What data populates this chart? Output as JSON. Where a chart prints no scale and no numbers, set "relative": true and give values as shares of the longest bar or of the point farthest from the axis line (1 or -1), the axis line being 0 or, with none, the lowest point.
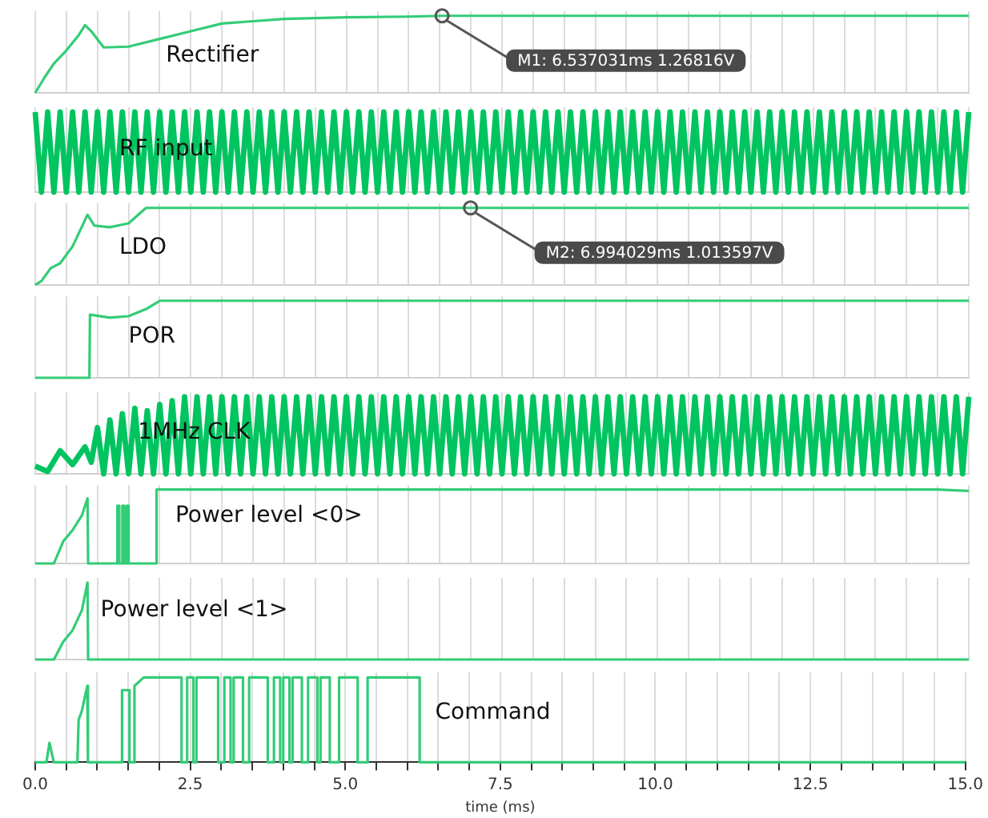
{
  "chart_data": [
    {
      "type": "line",
      "color": "#33cc77",
      "relative": true,
      "grid": "x",
      "tick_labels": false,
      "xlim": [
        0,
        15
      ],
      "xticks": [
        0,
        0.5,
        1,
        1.5,
        2,
        2.5,
        3,
        3.5,
        4,
        4.5,
        5,
        5.5,
        6,
        6.5,
        7,
        7.5,
        8,
        8.5,
        9,
        9.5,
        10,
        10.5,
        11,
        11.5,
        12,
        12.5,
        13,
        13.5,
        14,
        14.5,
        15
      ],
      "x": [
        0,
        0.15,
        0.3,
        0.5,
        0.7,
        0.8,
        0.9,
        1.1,
        1.5,
        2,
        2.5,
        3,
        3.5,
        4,
        5,
        6,
        6.537031,
        8,
        10,
        12,
        15
      ],
      "values": [
        0,
        0.2,
        0.38,
        0.55,
        0.75,
        0.88,
        0.8,
        0.59,
        0.6,
        0.7,
        0.8,
        0.9,
        0.93,
        0.96,
        0.98,
        0.99,
        1,
        1,
        1,
        1,
        1
      ],
      "annotations": [
        "Rectifier",
        {
          "text": "M1: 6.537031ms 1.26816V",
          "x": 6.537031,
          "y": 1
        }
      ]
    },
    {
      "type": "line",
      "color": "#00c45f",
      "relative": true,
      "grid": "x",
      "tick_labels": false,
      "xlim": [
        0,
        15
      ],
      "xticks": [
        0,
        0.5,
        1,
        1.5,
        2,
        2.5,
        3,
        3.5,
        4,
        4.5,
        5,
        5.5,
        6,
        6.5,
        7,
        7.5,
        8,
        8.5,
        9,
        9.5,
        10,
        10.5,
        11,
        11.5,
        12,
        12.5,
        13,
        13.5,
        14,
        14.5,
        15
      ],
      "x": [
        0,
        0.1,
        0.2,
        0.3,
        0.4,
        0.5,
        0.6,
        0.7,
        0.8,
        0.9,
        1,
        1.1,
        1.2,
        1.3,
        1.4,
        1.5,
        1.6,
        1.7,
        1.8,
        1.9,
        2,
        2.1,
        2.2,
        2.3,
        2.4,
        2.5,
        2.6,
        2.7,
        2.8,
        2.9,
        3,
        3.1,
        3.2,
        3.3,
        3.4,
        3.5,
        3.6,
        3.7,
        3.8,
        3.9,
        4,
        4.1,
        4.2,
        4.3,
        4.4,
        4.5,
        4.6,
        4.7,
        4.8,
        4.9,
        5,
        5.1,
        5.2,
        5.3,
        5.4,
        5.5,
        5.6,
        5.7,
        5.8,
        5.9,
        6,
        6.1,
        6.2,
        6.3,
        6.4,
        6.5,
        6.6,
        6.7,
        6.8,
        6.9,
        7,
        7.1,
        7.2,
        7.3,
        7.4,
        7.5,
        7.6,
        7.7,
        7.8,
        7.9,
        8,
        8.1,
        8.2,
        8.3,
        8.4,
        8.5,
        8.6,
        8.7,
        8.8,
        8.9,
        9,
        9.1,
        9.2,
        9.3,
        9.4,
        9.5,
        9.6,
        9.7,
        9.8,
        9.9,
        10,
        10.1,
        10.2,
        10.3,
        10.4,
        10.5,
        10.6,
        10.7,
        10.8,
        10.9,
        11,
        11.1,
        11.2,
        11.3,
        11.4,
        11.5,
        11.6,
        11.7,
        11.8,
        11.9,
        12,
        12.1,
        12.2,
        12.3,
        12.4,
        12.5,
        12.6,
        12.7,
        12.8,
        12.9,
        13,
        13.1,
        13.2,
        13.3,
        13.4,
        13.5,
        13.6,
        13.7,
        13.8,
        13.9,
        14,
        14.1,
        14.2,
        14.3,
        14.4,
        14.5,
        14.6,
        14.7,
        14.8,
        14.9,
        15
      ],
      "values": [
        1,
        0,
        1,
        0,
        1,
        0,
        1,
        0,
        1,
        0,
        1,
        0,
        1,
        0,
        1,
        0,
        1,
        0,
        1,
        0,
        1,
        0,
        1,
        0,
        1,
        0,
        1,
        0,
        1,
        0,
        1,
        0,
        1,
        0,
        1,
        0,
        1,
        0,
        1,
        0,
        1,
        0,
        1,
        0,
        1,
        0,
        1,
        0,
        1,
        0,
        1,
        0,
        1,
        0,
        1,
        0,
        1,
        0,
        1,
        0,
        1,
        0,
        1,
        0,
        1,
        0,
        1,
        0,
        1,
        0,
        1,
        0,
        1,
        0,
        1,
        0,
        1,
        0,
        1,
        0,
        1,
        0,
        1,
        0,
        1,
        0,
        1,
        0,
        1,
        0,
        1,
        0,
        1,
        0,
        1,
        0,
        1,
        0,
        1,
        0,
        1,
        0,
        1,
        0,
        1,
        0,
        1,
        0,
        1,
        0,
        1,
        0,
        1,
        0,
        1,
        0,
        1,
        0,
        1,
        0,
        1,
        0,
        1,
        0,
        1,
        0,
        1,
        0,
        1,
        0,
        1,
        0,
        1,
        0,
        1,
        0,
        1,
        0,
        1,
        0,
        1,
        0,
        1,
        0,
        1,
        0,
        1,
        0,
        1,
        0,
        1
      ],
      "annotations": [
        "RF input"
      ]
    },
    {
      "type": "line",
      "color": "#33cc77",
      "relative": true,
      "grid": "x",
      "tick_labels": false,
      "xlim": [
        0,
        15
      ],
      "xticks": [
        0,
        0.5,
        1,
        1.5,
        2,
        2.5,
        3,
        3.5,
        4,
        4.5,
        5,
        5.5,
        6,
        6.5,
        7,
        7.5,
        8,
        8.5,
        9,
        9.5,
        10,
        10.5,
        11,
        11.5,
        12,
        12.5,
        13,
        13.5,
        14,
        14.5,
        15
      ],
      "x": [
        0,
        0.1,
        0.25,
        0.4,
        0.6,
        0.84,
        0.95,
        1.2,
        1.5,
        1.78,
        6.994029,
        15
      ],
      "values": [
        0,
        0.05,
        0.22,
        0.28,
        0.5,
        0.91,
        0.77,
        0.75,
        0.8,
        1,
        1,
        1
      ],
      "annotations": [
        "LDO",
        {
          "text": "M2: 6.994029ms 1.013597V",
          "x": 6.994029,
          "y": 1
        }
      ]
    },
    {
      "type": "line",
      "color": "#33cc77",
      "relative": true,
      "grid": "x",
      "tick_labels": false,
      "xlim": [
        0,
        15
      ],
      "xticks": [
        0,
        0.5,
        1,
        1.5,
        2,
        2.5,
        3,
        3.5,
        4,
        4.5,
        5,
        5.5,
        6,
        6.5,
        7,
        7.5,
        8,
        8.5,
        9,
        9.5,
        10,
        10.5,
        11,
        11.5,
        12,
        12.5,
        13,
        13.5,
        14,
        14.5,
        15
      ],
      "x": [
        0,
        0.87,
        0.88,
        1.2,
        1.5,
        1.8,
        2,
        15
      ],
      "values": [
        0,
        0,
        0.82,
        0.78,
        0.8,
        0.9,
        1,
        1
      ],
      "annotations": [
        "POR"
      ]
    },
    {
      "type": "line",
      "color": "#00c45f",
      "relative": true,
      "grid": "x",
      "tick_labels": false,
      "xlim": [
        0,
        15
      ],
      "xticks": [
        0,
        0.5,
        1,
        1.5,
        2,
        2.5,
        3,
        3.5,
        4,
        4.5,
        5,
        5.5,
        6,
        6.5,
        7,
        7.5,
        8,
        8.5,
        9,
        9.5,
        10,
        10.5,
        11,
        11.5,
        12,
        12.5,
        13,
        13.5,
        14,
        14.5,
        15
      ],
      "x": [
        0,
        0.2,
        0.4,
        0.6,
        0.8,
        0.9,
        1,
        1.1,
        1.2,
        1.3,
        1.4,
        1.5,
        1.6,
        1.7,
        1.8,
        1.9,
        2,
        2.1,
        2.2,
        2.3,
        2.4,
        2.5,
        2.6,
        2.7,
        2.8,
        2.9,
        3,
        3.1,
        3.2,
        3.3,
        3.4,
        3.5,
        3.6,
        3.7,
        3.8,
        3.9,
        4,
        4.1,
        4.2,
        4.3,
        4.4,
        4.5,
        4.6,
        4.7,
        4.8,
        4.9,
        5,
        5.1,
        5.2,
        5.3,
        5.4,
        5.5,
        5.6,
        5.7,
        5.8,
        5.9,
        6,
        6.1,
        6.2,
        6.3,
        6.4,
        6.5,
        6.6,
        6.7,
        6.8,
        6.9,
        7,
        7.1,
        7.2,
        7.3,
        7.4,
        7.5,
        7.6,
        7.7,
        7.8,
        7.9,
        8,
        8.1,
        8.2,
        8.3,
        8.4,
        8.5,
        8.6,
        8.7,
        8.8,
        8.9,
        9,
        9.1,
        9.2,
        9.3,
        9.4,
        9.5,
        9.6,
        9.7,
        9.8,
        9.9,
        10,
        10.1,
        10.2,
        10.3,
        10.4,
        10.5,
        10.6,
        10.7,
        10.8,
        10.9,
        11,
        11.1,
        11.2,
        11.3,
        11.4,
        11.5,
        11.6,
        11.7,
        11.8,
        11.9,
        12,
        12.1,
        12.2,
        12.3,
        12.4,
        12.5,
        12.6,
        12.7,
        12.8,
        12.9,
        13,
        13.1,
        13.2,
        13.3,
        13.4,
        13.5,
        13.6,
        13.7,
        13.8,
        13.9,
        14,
        14.1,
        14.2,
        14.3,
        14.4,
        14.5,
        14.6,
        14.7,
        14.8,
        14.9,
        15
      ],
      "values": [
        0.1,
        0.03,
        0.3,
        0.12,
        0.35,
        0.15,
        0.6,
        0,
        0.7,
        0,
        0.78,
        0,
        0.85,
        0,
        0.82,
        0,
        0.9,
        0,
        0.95,
        0,
        1,
        0,
        1,
        0,
        1,
        0,
        1,
        0,
        1,
        0,
        1,
        0,
        1,
        0,
        1,
        0,
        1,
        0,
        1,
        0,
        1,
        0,
        1,
        0,
        1,
        0,
        1,
        0,
        1,
        0,
        1,
        0,
        1,
        0,
        1,
        0,
        1,
        0,
        1,
        0,
        1,
        0,
        1,
        0,
        1,
        0,
        1,
        0,
        1,
        0,
        1,
        0,
        1,
        0,
        1,
        0,
        1,
        0,
        1,
        0,
        1,
        0,
        1,
        0,
        1,
        0,
        1,
        0,
        1,
        0,
        1,
        0,
        1,
        0,
        1,
        0,
        1,
        0,
        1,
        0,
        1,
        0,
        1,
        0,
        1,
        0,
        1,
        0,
        1,
        0,
        1,
        0,
        1,
        0,
        1,
        0,
        1,
        0,
        1,
        0,
        1,
        0,
        1,
        0,
        1,
        0,
        1,
        0,
        1,
        0,
        1,
        0,
        1,
        0,
        1,
        0,
        1,
        0,
        1,
        0,
        1,
        0,
        1,
        0,
        1,
        0,
        1
      ],
      "annotations": [
        "1MHz CLK"
      ]
    },
    {
      "type": "line",
      "color": "#33cc77",
      "relative": true,
      "grid": "x",
      "tick_labels": false,
      "xlim": [
        0,
        15
      ],
      "xticks": [
        0,
        0.5,
        1,
        1.5,
        2,
        2.5,
        3,
        3.5,
        4,
        4.5,
        5,
        5.5,
        6,
        6.5,
        7,
        7.5,
        8,
        8.5,
        9,
        9.5,
        10,
        10.5,
        11,
        11.5,
        12,
        12.5,
        13,
        13.5,
        14,
        14.5,
        15
      ],
      "x": [
        0,
        0.3,
        0.45,
        0.6,
        0.75,
        0.84,
        0.85,
        1.32,
        1.32,
        1.35,
        1.35,
        1.4,
        1.4,
        1.43,
        1.43,
        1.47,
        1.47,
        1.5,
        1.5,
        1.94,
        1.95,
        14.5,
        15
      ],
      "values": [
        0,
        0,
        0.3,
        0.45,
        0.65,
        0.88,
        0,
        0,
        0.78,
        0.78,
        0,
        0,
        0.78,
        0.78,
        0,
        0,
        0.78,
        0.78,
        0,
        0,
        1,
        1,
        0.98
      ],
      "annotations": [
        "Power level <0>"
      ]
    },
    {
      "type": "line",
      "color": "#33cc77",
      "relative": true,
      "grid": "x",
      "tick_labels": false,
      "xlim": [
        0,
        15
      ],
      "xticks": [
        0,
        0.5,
        1,
        1.5,
        2,
        2.5,
        3,
        3.5,
        4,
        4.5,
        5,
        5.5,
        6,
        6.5,
        7,
        7.5,
        8,
        8.5,
        9,
        9.5,
        10,
        10.5,
        11,
        11.5,
        12,
        12.5,
        13,
        13.5,
        14,
        14.5,
        15
      ],
      "x": [
        0,
        0.3,
        0.45,
        0.6,
        0.75,
        0.84,
        0.85,
        12,
        15
      ],
      "values": [
        0,
        0,
        0.23,
        0.38,
        0.64,
        1,
        0,
        0,
        0
      ],
      "annotations": [
        "Power level <1>"
      ]
    },
    {
      "type": "line",
      "color": "#33cc77",
      "relative": true,
      "grid": "x",
      "xlabel": "time (ms)",
      "xlim": [
        0,
        15
      ],
      "xticks": [
        {
          "value": 0,
          "label": "0.0"
        },
        {
          "value": 0.5,
          "label": null
        },
        {
          "value": 1,
          "label": null
        },
        {
          "value": 1.5,
          "label": null
        },
        {
          "value": 2,
          "label": null
        },
        2.5,
        {
          "value": 3,
          "label": null
        },
        {
          "value": 3.5,
          "label": null
        },
        {
          "value": 4,
          "label": null
        },
        {
          "value": 4.5,
          "label": null
        },
        {
          "value": 5,
          "label": "5.0"
        },
        {
          "value": 5.5,
          "label": null
        },
        {
          "value": 6,
          "label": null
        },
        {
          "value": 6.5,
          "label": null
        },
        {
          "value": 7,
          "label": null
        },
        7.5,
        {
          "value": 8,
          "label": null
        },
        {
          "value": 8.5,
          "label": null
        },
        {
          "value": 9,
          "label": null
        },
        {
          "value": 9.5,
          "label": null
        },
        {
          "value": 10,
          "label": "10.0"
        },
        {
          "value": 10.5,
          "label": null
        },
        {
          "value": 11,
          "label": null
        },
        {
          "value": 11.5,
          "label": null
        },
        {
          "value": 12,
          "label": null
        },
        12.5,
        {
          "value": 13,
          "label": null
        },
        {
          "value": 13.5,
          "label": null
        },
        {
          "value": 14,
          "label": null
        },
        {
          "value": 14.5,
          "label": null
        },
        {
          "value": 15,
          "label": "15.0"
        }
      ],
      "x": [
        0,
        0.18,
        0.23,
        0.3,
        0.68,
        0.7,
        0.75,
        0.84,
        0.85,
        1.4,
        1.4,
        1.52,
        1.52,
        1.6,
        1.6,
        1.75,
        2.36,
        2.36,
        2.45,
        2.45,
        2.55,
        2.55,
        2.6,
        2.6,
        2.95,
        2.95,
        3.05,
        3.05,
        3.15,
        3.15,
        3.2,
        3.2,
        3.35,
        3.35,
        3.45,
        3.45,
        3.75,
        3.75,
        3.85,
        3.85,
        3.95,
        3.95,
        4,
        4,
        4.1,
        4.1,
        4.15,
        4.15,
        4.3,
        4.3,
        4.4,
        4.4,
        4.55,
        4.55,
        4.6,
        4.6,
        4.75,
        4.75,
        4.9,
        4.9,
        5.2,
        5.2,
        5.36,
        5.36,
        6.2,
        6.2,
        15
      ],
      "values": [
        0,
        0,
        0.23,
        0,
        0,
        0.5,
        0.6,
        0.9,
        0,
        0,
        0.85,
        0.85,
        0,
        0,
        0.9,
        1,
        1,
        0,
        0,
        1,
        1,
        0,
        0,
        1,
        1,
        0,
        0,
        1,
        1,
        0,
        0,
        1,
        1,
        0,
        0,
        1,
        1,
        0,
        0,
        1,
        1,
        0,
        0,
        1,
        1,
        0,
        0,
        1,
        1,
        0,
        0,
        1,
        1,
        0,
        0,
        1,
        1,
        0,
        0,
        1,
        1,
        0,
        0,
        1,
        1,
        0,
        0
      ],
      "annotations": [
        "Command"
      ]
    }
  ]
}
